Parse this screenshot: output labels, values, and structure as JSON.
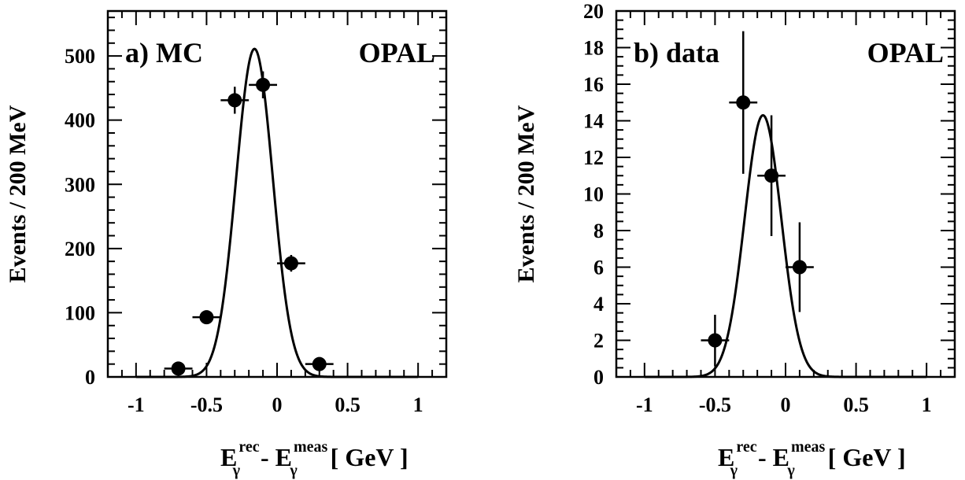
{
  "chart_data": [
    {
      "type": "scatter",
      "panel_label": "a) MC",
      "experiment_label": "OPAL",
      "ylabel": "Events / 200 MeV",
      "xlabel": {
        "main_1": "E",
        "sub_1": "γ",
        "sup_1": "rec",
        "minus": " - E",
        "sub_2": "γ",
        "sup_2": "meas",
        "unit": "[ GeV ]"
      },
      "xlim": [
        -1.2,
        1.2
      ],
      "ylim": [
        0,
        570
      ],
      "xticks": [
        -1,
        -0.5,
        0,
        0.5,
        1
      ],
      "xtick_labels": [
        "-1",
        "-0.5",
        "0",
        "0.5",
        "1"
      ],
      "yticks": [
        0,
        100,
        200,
        300,
        400,
        500
      ],
      "ytick_labels": [
        "0",
        "100",
        "200",
        "300",
        "400",
        "500"
      ],
      "x_minor_step": 0.1,
      "y_minor_step": 20,
      "points": [
        {
          "x": -0.7,
          "y": 13,
          "xerr": 0.1,
          "yerr": 4
        },
        {
          "x": -0.5,
          "y": 93,
          "xerr": 0.1,
          "yerr": 10
        },
        {
          "x": -0.3,
          "y": 431,
          "xerr": 0.1,
          "yerr": 21
        },
        {
          "x": -0.1,
          "y": 455,
          "xerr": 0.1,
          "yerr": 21
        },
        {
          "x": 0.1,
          "y": 177,
          "xerr": 0.1,
          "yerr": 13
        },
        {
          "x": 0.3,
          "y": 20,
          "xerr": 0.1,
          "yerr": 4
        }
      ],
      "fit": {
        "type": "gaussian",
        "amplitude": 511,
        "mean": -0.16,
        "sigma": 0.13
      }
    },
    {
      "type": "scatter",
      "panel_label": "b) data",
      "experiment_label": "OPAL",
      "ylabel": "Events / 200 MeV",
      "xlabel": {
        "main_1": "E",
        "sub_1": "γ",
        "sup_1": "rec",
        "minus": " - E",
        "sub_2": "γ",
        "sup_2": "meas",
        "unit": "[ GeV ]"
      },
      "xlim": [
        -1.2,
        1.2
      ],
      "ylim": [
        0,
        20
      ],
      "xticks": [
        -1,
        -0.5,
        0,
        0.5,
        1
      ],
      "xtick_labels": [
        "-1",
        "-0.5",
        "0",
        "0.5",
        "1"
      ],
      "yticks": [
        0,
        2,
        4,
        6,
        8,
        10,
        12,
        14,
        16,
        18,
        20
      ],
      "ytick_labels": [
        "0",
        "2",
        "4",
        "6",
        "8",
        "10",
        "12",
        "14",
        "16",
        "18",
        "20"
      ],
      "x_minor_step": 0.1,
      "y_minor_step": 0.5,
      "points": [
        {
          "x": -0.5,
          "y": 2,
          "xerr": 0.1,
          "yerr": 1.4
        },
        {
          "x": -0.3,
          "y": 15,
          "xerr": 0.1,
          "yerr": 3.9
        },
        {
          "x": -0.1,
          "y": 11,
          "xerr": 0.1,
          "yerr": 3.3
        },
        {
          "x": 0.1,
          "y": 6,
          "xerr": 0.1,
          "yerr": 2.45
        }
      ],
      "fit": {
        "type": "gaussian",
        "amplitude": 14.3,
        "mean": -0.16,
        "sigma": 0.13
      }
    }
  ]
}
